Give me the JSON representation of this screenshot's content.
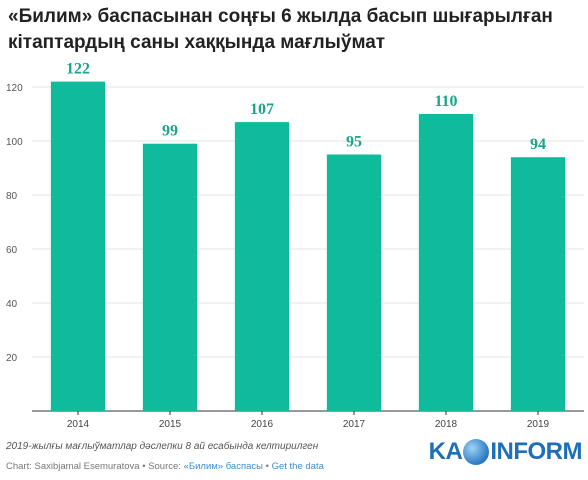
{
  "chart_data": {
    "type": "bar",
    "title_line1": "«Билим» баспасынан соңғы 6 жылда басып шығарылған",
    "title_line2": "кітаптардың саны хаққында мағлыўмат",
    "categories": [
      "2014",
      "2015",
      "2016",
      "2017",
      "2018",
      "2019"
    ],
    "values": [
      122,
      99,
      107,
      95,
      110,
      94
    ],
    "ylim": [
      0,
      130
    ],
    "yticks": [
      20,
      40,
      60,
      80,
      100,
      120
    ],
    "grid": true,
    "colors": {
      "bar": "#0fbb9a",
      "data_label": "#1aa58a",
      "grid": "#e3e3e3",
      "axis": "#333333"
    }
  },
  "footnote": "2019-жылғы мағлыўматлар дәслепки 8 ай есабында келтирилген",
  "credit": {
    "prefix": "Chart: Saxibjamal Esemuratova • Source: ",
    "source_link": "«Билим» баспасы",
    "separator": " • ",
    "data_link": "Get the data"
  },
  "logo": {
    "left": "KA",
    "right": "INFORM"
  }
}
